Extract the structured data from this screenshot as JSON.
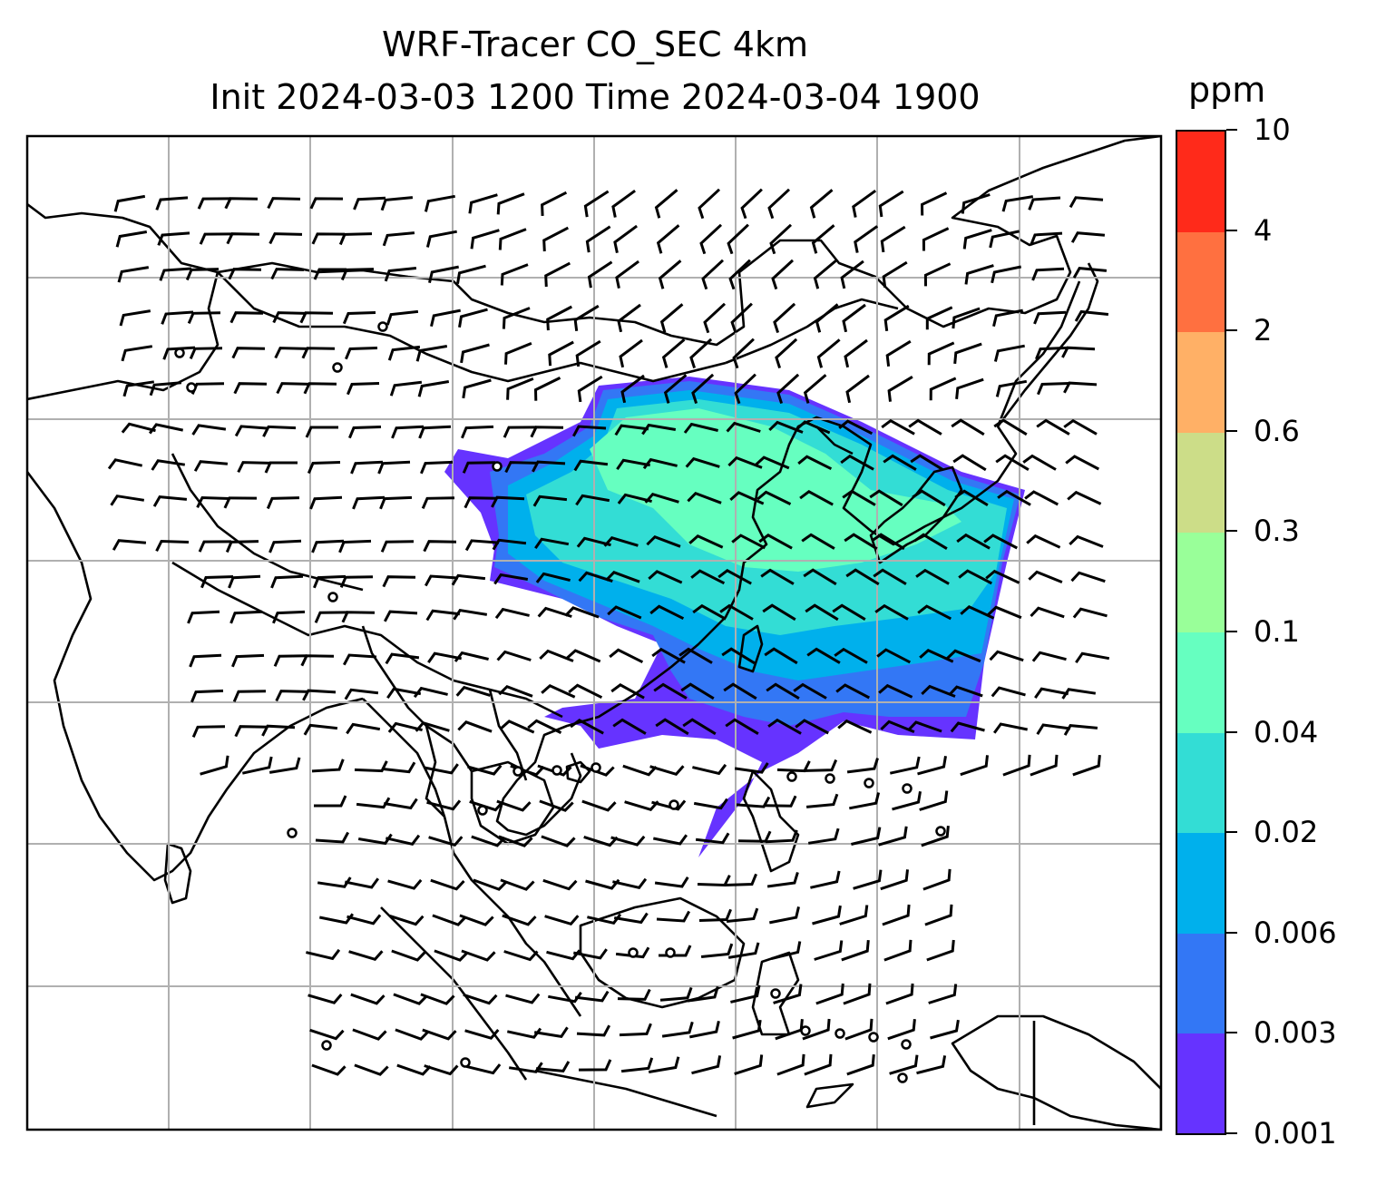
{
  "title": {
    "line1": "WRF-Tracer CO_SEC 4km",
    "line2": "Init 2024-03-03 1200 Time 2024-03-04 1900"
  },
  "colorbar": {
    "unit": "ppm",
    "levels": [
      "0.001",
      "0.003",
      "0.006",
      "0.02",
      "0.04",
      "0.1",
      "0.3",
      "0.6",
      "2",
      "4",
      "10"
    ],
    "colors": [
      "#6633ff",
      "#3377f5",
      "#00b0ec",
      "#33ddd5",
      "#66ffc0",
      "#99ff99",
      "#ccdd88",
      "#ffb066",
      "#ff7040",
      "#ff2a1a"
    ]
  },
  "map": {
    "gridlines": true,
    "features": [
      "coastlines",
      "country borders",
      "wind barbs",
      "CO tracer concentration contours"
    ]
  }
}
